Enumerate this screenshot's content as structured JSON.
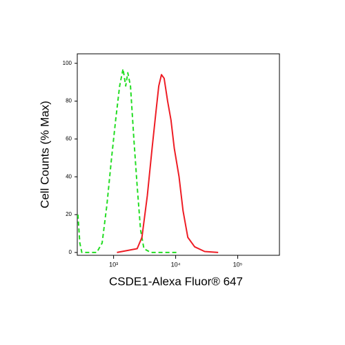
{
  "chart_data": {
    "type": "line",
    "xlabel": "CSDE1-Alexa Fluor® 647",
    "ylabel": "Cell Counts (% Max)",
    "xscale": "log",
    "xlim": [
      260,
      470000
    ],
    "ylim": [
      -1.5,
      105
    ],
    "xticks": [
      {
        "value": 1000,
        "label": "10³"
      },
      {
        "value": 10000,
        "label": "10⁴"
      },
      {
        "value": 100000,
        "label": "10⁵"
      }
    ],
    "yticks": [
      0,
      20,
      40,
      60,
      80,
      100
    ],
    "series": [
      {
        "color": "#22dd22",
        "dash": true,
        "x": [
          266,
          286,
          308,
          535,
          653,
          779,
          927,
          1078,
          1253,
          1420,
          1570,
          1691,
          1870,
          2120,
          2400,
          2720,
          3080,
          3960,
          10800
        ],
        "values": [
          20,
          5,
          0,
          0,
          5,
          25,
          50,
          70,
          88,
          97,
          88,
          95,
          88,
          60,
          35,
          12,
          2,
          0,
          0
        ]
      },
      {
        "color": "#ee1c24",
        "dash": false,
        "x": [
          1133,
          1650,
          2400,
          2860,
          3490,
          4170,
          4840,
          5350,
          5910,
          6530,
          7410,
          8400,
          9510,
          11330,
          13170,
          15700,
          20200,
          29300,
          48400
        ],
        "values": [
          0,
          1,
          2,
          8,
          30,
          55,
          75,
          88,
          94,
          92,
          80,
          70,
          55,
          40,
          22,
          8,
          3,
          0.5,
          0
        ]
      }
    ]
  }
}
